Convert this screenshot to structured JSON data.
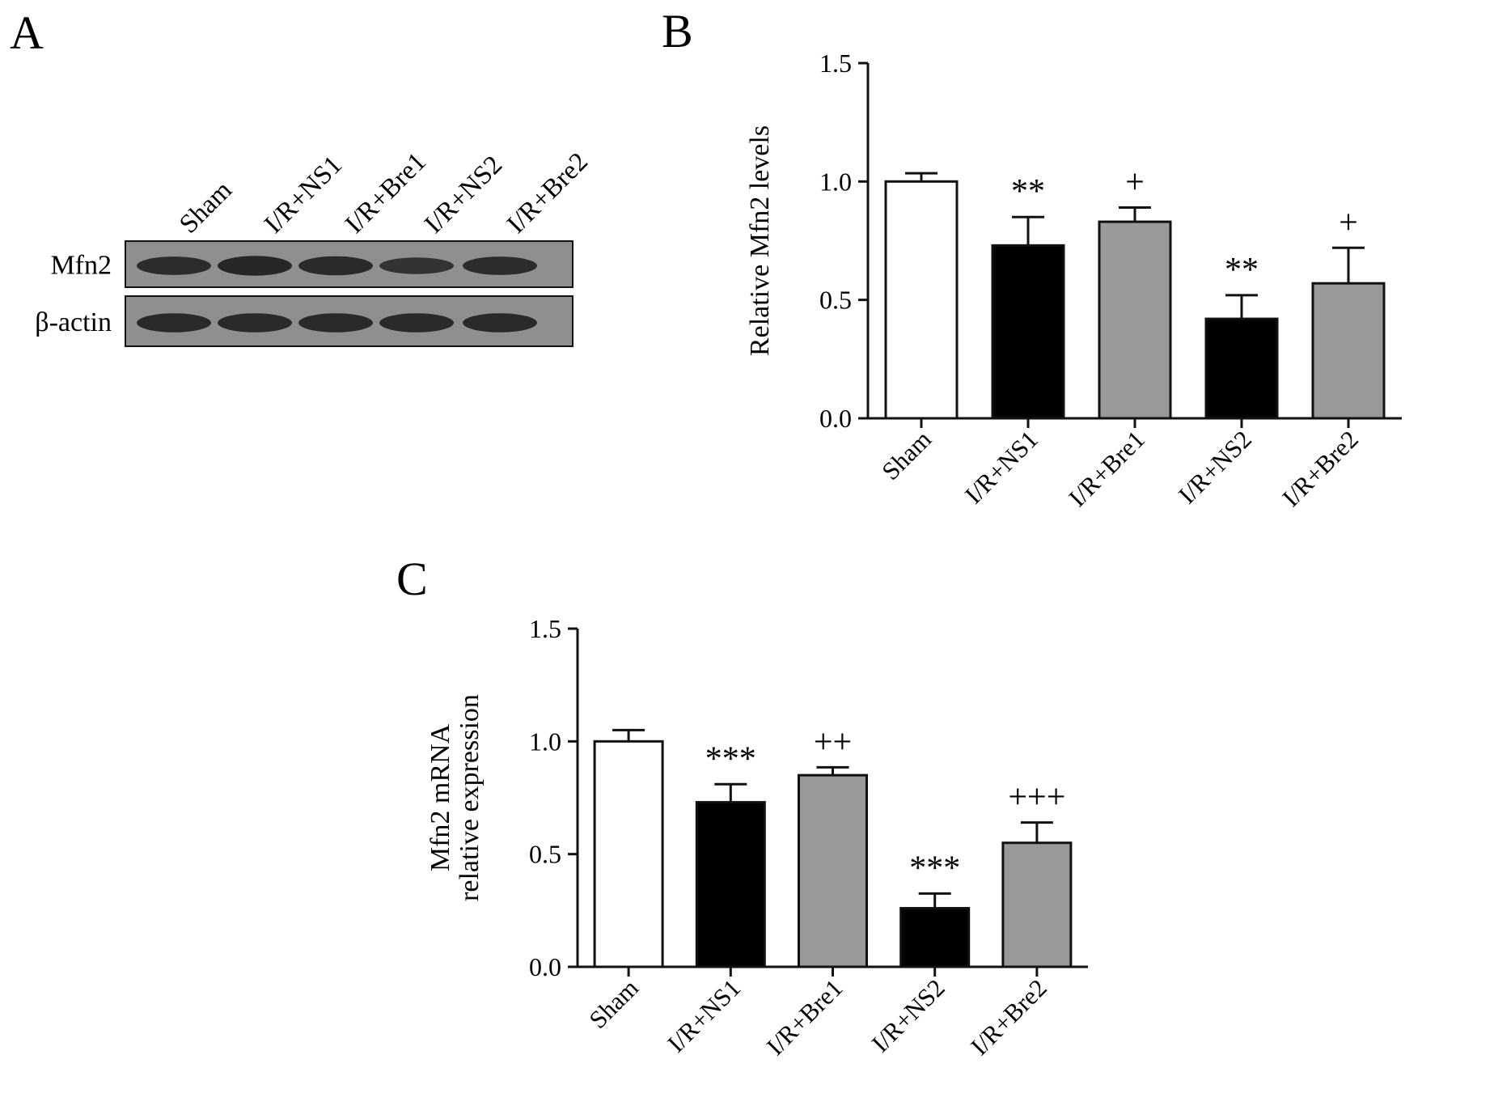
{
  "panels": {
    "a": {
      "letter": "A"
    },
    "b": {
      "letter": "B"
    },
    "c": {
      "letter": "C"
    }
  },
  "colors": {
    "white_bar": "#ffffff",
    "black_bar": "#000000",
    "gray_bar": "#999999",
    "blot_bg": "#8f8f8f",
    "band": "#222222"
  },
  "blot": {
    "lanes": [
      "Sham",
      "I/R+NS1",
      "I/R+Bre1",
      "I/R+NS2",
      "I/R+Bre2"
    ],
    "rows": [
      {
        "label": "Mfn2",
        "band_intensity": [
          0.8,
          0.9,
          0.85,
          0.65,
          0.8
        ]
      },
      {
        "label": "β-actin",
        "band_intensity": [
          0.85,
          0.85,
          0.85,
          0.85,
          0.85
        ]
      }
    ]
  },
  "chart_data": [
    {
      "panel": "B",
      "type": "bar",
      "ylabel": "Relative Mfn2 levels",
      "xlabel": "",
      "ylim": [
        0,
        1.5
      ],
      "yticks": [
        "0.0",
        "0.5",
        "1.0",
        "1.5"
      ],
      "categories": [
        "Sham",
        "I/R+NS1",
        "I/R+Bre1",
        "I/R+NS2",
        "I/R+Bre2"
      ],
      "values": [
        1.0,
        0.73,
        0.83,
        0.42,
        0.57
      ],
      "errors": [
        0.035,
        0.12,
        0.06,
        0.1,
        0.15
      ],
      "bar_colors": [
        "white",
        "black",
        "gray",
        "black",
        "gray"
      ],
      "annotations": [
        "",
        "**",
        "+",
        "**",
        "+"
      ],
      "grid": false
    },
    {
      "panel": "C",
      "type": "bar",
      "ylabel": [
        "Mfn2 mRNA",
        "relative expression"
      ],
      "xlabel": "",
      "ylim": [
        0,
        1.5
      ],
      "yticks": [
        "0.0",
        "0.5",
        "1.0",
        "1.5"
      ],
      "categories": [
        "Sham",
        "I/R+NS1",
        "I/R+Bre1",
        "I/R+NS2",
        "I/R+Bre2"
      ],
      "values": [
        1.0,
        0.73,
        0.85,
        0.26,
        0.55
      ],
      "errors": [
        0.05,
        0.08,
        0.035,
        0.065,
        0.09
      ],
      "bar_colors": [
        "white",
        "black",
        "gray",
        "black",
        "gray"
      ],
      "annotations": [
        "",
        "***",
        "++",
        "***",
        "+++"
      ],
      "grid": false
    }
  ]
}
